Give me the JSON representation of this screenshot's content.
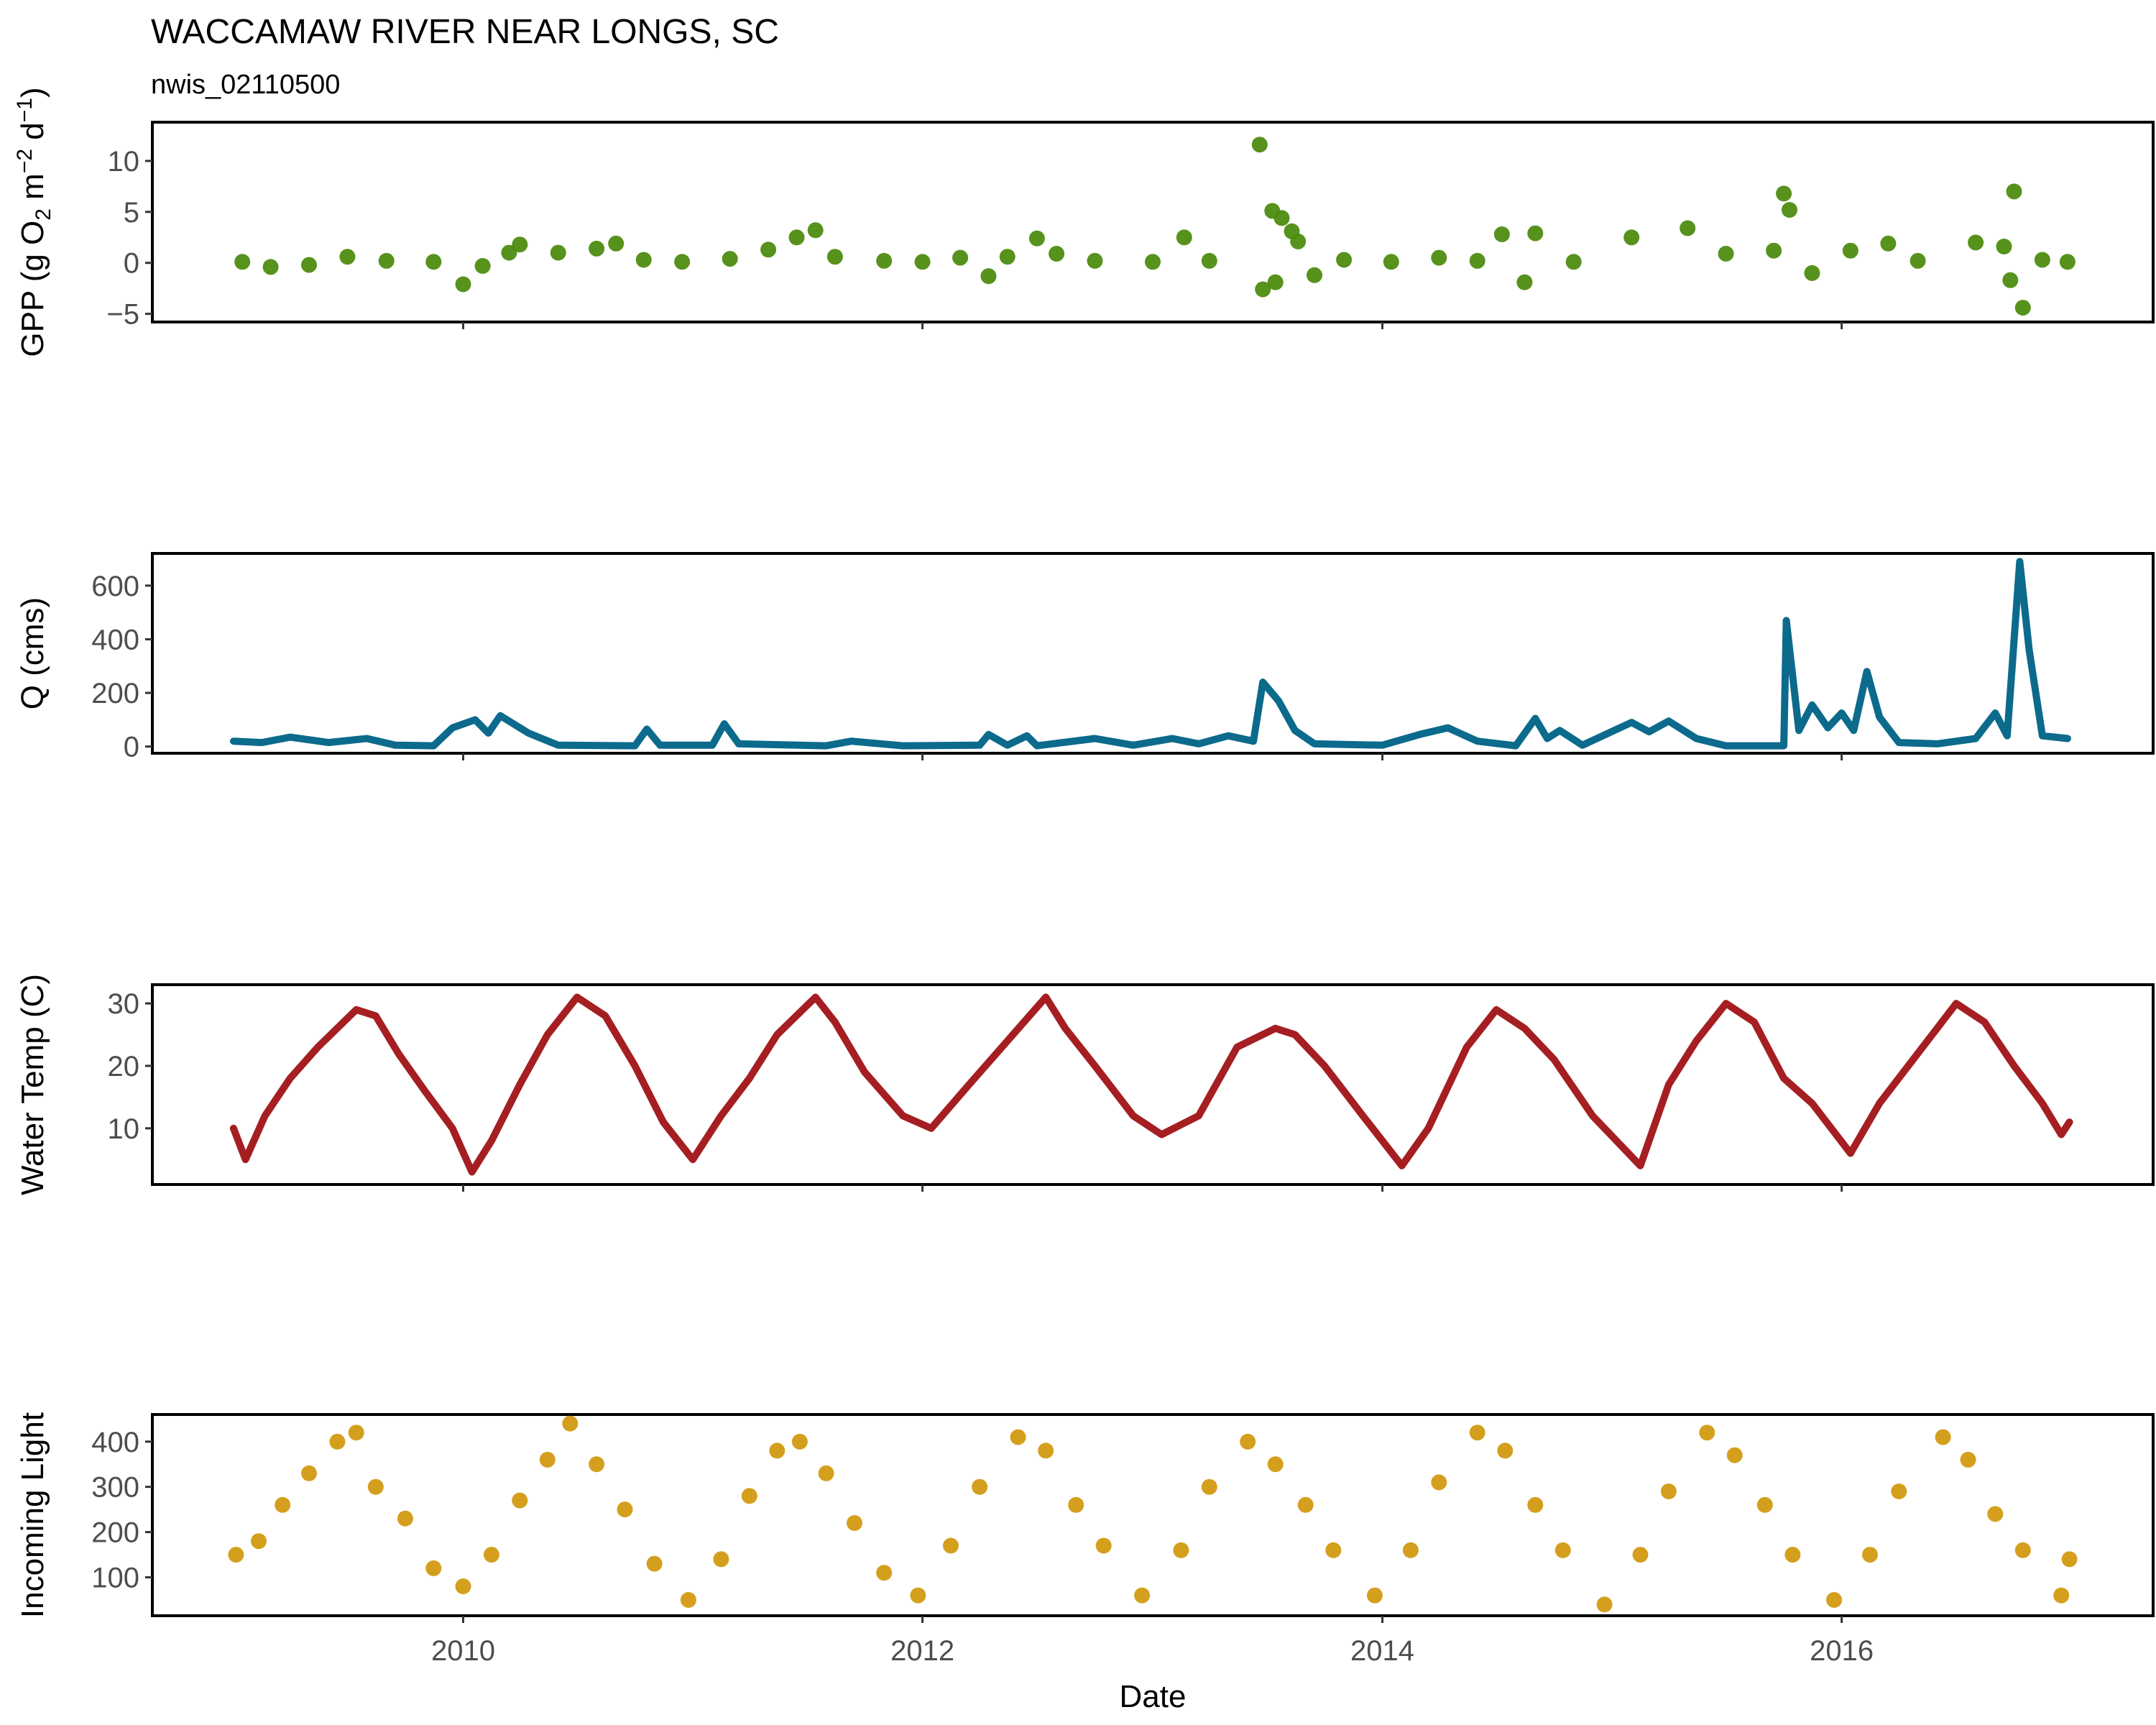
{
  "chart_data": {
    "title": "WACCAMAW RIVER NEAR LONGS, SC",
    "subtitle": "nwis_02110500",
    "xlabel": "Date",
    "type": "multi-panel",
    "x_axis": {
      "type": "date",
      "range": [
        "2008-08-25",
        "2017-05-10"
      ],
      "tick_labels": [
        "2010",
        "2012",
        "2014",
        "2016"
      ]
    },
    "x_ticks": [
      "2010-01-01",
      "2012-01-01",
      "2014-01-01",
      "2016-01-01"
    ],
    "panels": [
      {
        "id": "gpp",
        "type": "scatter",
        "ylabel": {
          "text": "GPP (g  O",
          "sub": "2",
          "mid": " m",
          "sup1": "−2",
          "mid2": " d",
          "sup2": "−1",
          "end": ")"
        },
        "ylim": [
          -5.8,
          13.8
        ],
        "yticks": [
          -5,
          0,
          5,
          10
        ],
        "color": "#4d8c10",
        "points": [
          [
            "2009-01-15",
            0.1
          ],
          [
            "2009-03-01",
            -0.4
          ],
          [
            "2009-05-01",
            -0.2
          ],
          [
            "2009-07-01",
            0.6
          ],
          [
            "2009-09-01",
            0.2
          ],
          [
            "2009-11-15",
            0.1
          ],
          [
            "2010-01-01",
            -2.1
          ],
          [
            "2010-02-01",
            -0.3
          ],
          [
            "2010-03-15",
            1.0
          ],
          [
            "2010-04-01",
            1.8
          ],
          [
            "2010-06-01",
            1.0
          ],
          [
            "2010-08-01",
            1.4
          ],
          [
            "2010-09-01",
            1.9
          ],
          [
            "2010-10-15",
            0.3
          ],
          [
            "2010-12-15",
            0.1
          ],
          [
            "2011-03-01",
            0.4
          ],
          [
            "2011-05-01",
            1.3
          ],
          [
            "2011-06-15",
            2.5
          ],
          [
            "2011-07-15",
            3.2
          ],
          [
            "2011-08-15",
            0.6
          ],
          [
            "2011-11-01",
            0.2
          ],
          [
            "2012-01-01",
            0.1
          ],
          [
            "2012-03-01",
            0.5
          ],
          [
            "2012-04-15",
            -1.3
          ],
          [
            "2012-05-15",
            0.6
          ],
          [
            "2012-07-01",
            2.4
          ],
          [
            "2012-08-01",
            0.9
          ],
          [
            "2012-10-01",
            0.2
          ],
          [
            "2013-01-01",
            0.1
          ],
          [
            "2013-02-20",
            2.5
          ],
          [
            "2013-04-01",
            0.2
          ],
          [
            "2013-06-20",
            11.6
          ],
          [
            "2013-07-10",
            5.1
          ],
          [
            "2013-07-25",
            4.4
          ],
          [
            "2013-08-10",
            3.1
          ],
          [
            "2013-08-20",
            2.1
          ],
          [
            "2013-06-25",
            -2.6
          ],
          [
            "2013-07-15",
            -1.9
          ],
          [
            "2013-09-15",
            -1.2
          ],
          [
            "2013-11-01",
            0.3
          ],
          [
            "2014-01-15",
            0.1
          ],
          [
            "2014-04-01",
            0.5
          ],
          [
            "2014-06-01",
            0.2
          ],
          [
            "2014-07-10",
            2.8
          ],
          [
            "2014-08-15",
            -1.9
          ],
          [
            "2014-09-01",
            2.9
          ],
          [
            "2014-11-01",
            0.1
          ],
          [
            "2015-02-01",
            2.5
          ],
          [
            "2015-05-01",
            3.4
          ],
          [
            "2015-07-01",
            0.9
          ],
          [
            "2015-09-15",
            1.2
          ],
          [
            "2015-10-01",
            6.8
          ],
          [
            "2015-10-10",
            5.2
          ],
          [
            "2015-11-15",
            -1.0
          ],
          [
            "2016-01-15",
            1.2
          ],
          [
            "2016-03-15",
            1.9
          ],
          [
            "2016-05-01",
            0.2
          ],
          [
            "2016-08-01",
            2.0
          ],
          [
            "2016-09-15",
            1.6
          ],
          [
            "2016-10-01",
            7.0
          ],
          [
            "2016-10-15",
            -4.4
          ],
          [
            "2016-09-25",
            -1.7
          ],
          [
            "2016-11-15",
            0.3
          ],
          [
            "2016-12-25",
            0.1
          ]
        ]
      },
      {
        "id": "q",
        "type": "line",
        "ylabel": {
          "text": "Q (cms)"
        },
        "ylim": [
          -25,
          720
        ],
        "yticks": [
          0,
          200,
          400,
          600
        ],
        "color": "#0c6a8c",
        "points": [
          [
            "2009-01-01",
            20
          ],
          [
            "2009-02-15",
            15
          ],
          [
            "2009-04-01",
            35
          ],
          [
            "2009-06-01",
            15
          ],
          [
            "2009-08-01",
            30
          ],
          [
            "2009-09-15",
            5
          ],
          [
            "2009-11-15",
            3
          ],
          [
            "2009-12-15",
            70
          ],
          [
            "2010-01-20",
            100
          ],
          [
            "2010-02-10",
            50
          ],
          [
            "2010-03-01",
            115
          ],
          [
            "2010-04-15",
            50
          ],
          [
            "2010-06-01",
            5
          ],
          [
            "2010-10-01",
            3
          ],
          [
            "2010-10-20",
            65
          ],
          [
            "2010-11-10",
            5
          ],
          [
            "2011-02-01",
            5
          ],
          [
            "2011-02-20",
            85
          ],
          [
            "2011-03-15",
            10
          ],
          [
            "2011-08-01",
            3
          ],
          [
            "2011-09-10",
            20
          ],
          [
            "2011-12-01",
            3
          ],
          [
            "2012-04-01",
            5
          ],
          [
            "2012-04-15",
            45
          ],
          [
            "2012-05-15",
            5
          ],
          [
            "2012-06-15",
            40
          ],
          [
            "2012-07-01",
            3
          ],
          [
            "2012-10-01",
            30
          ],
          [
            "2012-12-01",
            5
          ],
          [
            "2013-02-01",
            30
          ],
          [
            "2013-03-15",
            10
          ],
          [
            "2013-05-01",
            40
          ],
          [
            "2013-06-10",
            20
          ],
          [
            "2013-06-25",
            240
          ],
          [
            "2013-07-20",
            170
          ],
          [
            "2013-08-15",
            60
          ],
          [
            "2013-09-15",
            10
          ],
          [
            "2014-01-01",
            5
          ],
          [
            "2014-03-01",
            45
          ],
          [
            "2014-04-15",
            70
          ],
          [
            "2014-06-01",
            20
          ],
          [
            "2014-08-01",
            3
          ],
          [
            "2014-09-01",
            105
          ],
          [
            "2014-09-20",
            30
          ],
          [
            "2014-10-10",
            60
          ],
          [
            "2014-11-15",
            5
          ],
          [
            "2015-02-01",
            90
          ],
          [
            "2015-03-01",
            55
          ],
          [
            "2015-04-01",
            95
          ],
          [
            "2015-05-15",
            30
          ],
          [
            "2015-07-01",
            3
          ],
          [
            "2015-10-01",
            3
          ],
          [
            "2015-10-05",
            470
          ],
          [
            "2015-10-25",
            60
          ],
          [
            "2015-11-15",
            155
          ],
          [
            "2015-12-10",
            70
          ],
          [
            "2016-01-01",
            125
          ],
          [
            "2016-01-20",
            60
          ],
          [
            "2016-02-10",
            280
          ],
          [
            "2016-03-01",
            110
          ],
          [
            "2016-04-01",
            15
          ],
          [
            "2016-06-01",
            10
          ],
          [
            "2016-08-01",
            30
          ],
          [
            "2016-09-01",
            125
          ],
          [
            "2016-09-20",
            40
          ],
          [
            "2016-10-10",
            690
          ],
          [
            "2016-10-25",
            360
          ],
          [
            "2016-11-15",
            40
          ],
          [
            "2016-12-25",
            30
          ]
        ]
      },
      {
        "id": "temp",
        "type": "line",
        "ylabel": {
          "text": "Water Temp (C)"
        },
        "ylim": [
          1,
          33
        ],
        "yticks": [
          10,
          20,
          30
        ],
        "color": "#a51e22",
        "points": [
          [
            "2009-01-01",
            10
          ],
          [
            "2009-01-20",
            5
          ],
          [
            "2009-02-20",
            12
          ],
          [
            "2009-04-01",
            18
          ],
          [
            "2009-05-15",
            23
          ],
          [
            "2009-07-15",
            29
          ],
          [
            "2009-08-15",
            28
          ],
          [
            "2009-09-20",
            22
          ],
          [
            "2009-11-01",
            16
          ],
          [
            "2009-12-15",
            10
          ],
          [
            "2010-01-15",
            3
          ],
          [
            "2010-02-15",
            8
          ],
          [
            "2010-04-01",
            17
          ],
          [
            "2010-05-15",
            25
          ],
          [
            "2010-07-01",
            31
          ],
          [
            "2010-08-15",
            28
          ],
          [
            "2010-10-01",
            20
          ],
          [
            "2010-11-15",
            11
          ],
          [
            "2011-01-01",
            5
          ],
          [
            "2011-02-15",
            12
          ],
          [
            "2011-04-01",
            18
          ],
          [
            "2011-05-15",
            25
          ],
          [
            "2011-07-15",
            31
          ],
          [
            "2011-08-15",
            27
          ],
          [
            "2011-10-01",
            19
          ],
          [
            "2011-12-01",
            12
          ],
          [
            "2012-01-15",
            10
          ],
          [
            "2012-03-15",
            17
          ],
          [
            "2012-05-15",
            24
          ],
          [
            "2012-07-15",
            31
          ],
          [
            "2012-08-15",
            26
          ],
          [
            "2012-10-01",
            20
          ],
          [
            "2012-12-01",
            12
          ],
          [
            "2013-01-15",
            9
          ],
          [
            "2013-03-15",
            12
          ],
          [
            "2013-05-15",
            23
          ],
          [
            "2013-07-15",
            26
          ],
          [
            "2013-08-15",
            25
          ],
          [
            "2013-10-01",
            20
          ],
          [
            "2013-12-01",
            12
          ],
          [
            "2014-02-01",
            4
          ],
          [
            "2014-03-15",
            10
          ],
          [
            "2014-05-15",
            23
          ],
          [
            "2014-07-01",
            29
          ],
          [
            "2014-08-15",
            26
          ],
          [
            "2014-10-01",
            21
          ],
          [
            "2014-12-01",
            12
          ],
          [
            "2015-02-15",
            4
          ],
          [
            "2015-04-01",
            17
          ],
          [
            "2015-05-15",
            24
          ],
          [
            "2015-07-01",
            30
          ],
          [
            "2015-08-15",
            27
          ],
          [
            "2015-10-01",
            18
          ],
          [
            "2015-11-15",
            14
          ],
          [
            "2016-01-15",
            6
          ],
          [
            "2016-03-01",
            14
          ],
          [
            "2016-05-01",
            22
          ],
          [
            "2016-07-01",
            30
          ],
          [
            "2016-08-15",
            27
          ],
          [
            "2016-10-01",
            20
          ],
          [
            "2016-11-15",
            14
          ],
          [
            "2016-12-15",
            9
          ],
          [
            "2016-12-28",
            11
          ]
        ]
      },
      {
        "id": "light",
        "type": "scatter",
        "ylabel": {
          "text": "Incoming Light"
        },
        "ylim": [
          15,
          460
        ],
        "yticks": [
          100,
          200,
          300,
          400
        ],
        "color": "#d39a12",
        "points": [
          [
            "2009-01-05",
            150
          ],
          [
            "2009-02-10",
            180
          ],
          [
            "2009-03-20",
            260
          ],
          [
            "2009-05-01",
            330
          ],
          [
            "2009-06-15",
            400
          ],
          [
            "2009-07-15",
            420
          ],
          [
            "2009-08-15",
            300
          ],
          [
            "2009-10-01",
            230
          ],
          [
            "2009-11-15",
            120
          ],
          [
            "2010-01-01",
            80
          ],
          [
            "2010-02-15",
            150
          ],
          [
            "2010-04-01",
            270
          ],
          [
            "2010-05-15",
            360
          ],
          [
            "2010-06-20",
            440
          ],
          [
            "2010-08-01",
            350
          ],
          [
            "2010-09-15",
            250
          ],
          [
            "2010-11-01",
            130
          ],
          [
            "2010-12-25",
            50
          ],
          [
            "2011-02-15",
            140
          ],
          [
            "2011-04-01",
            280
          ],
          [
            "2011-05-15",
            380
          ],
          [
            "2011-06-20",
            400
          ],
          [
            "2011-08-01",
            330
          ],
          [
            "2011-09-15",
            220
          ],
          [
            "2011-11-01",
            110
          ],
          [
            "2011-12-25",
            60
          ],
          [
            "2012-02-15",
            170
          ],
          [
            "2012-04-01",
            300
          ],
          [
            "2012-06-01",
            410
          ],
          [
            "2012-07-15",
            380
          ],
          [
            "2012-09-01",
            260
          ],
          [
            "2012-10-15",
            170
          ],
          [
            "2012-12-15",
            60
          ],
          [
            "2013-02-15",
            160
          ],
          [
            "2013-04-01",
            300
          ],
          [
            "2013-06-01",
            400
          ],
          [
            "2013-07-15",
            350
          ],
          [
            "2013-09-01",
            260
          ],
          [
            "2013-10-15",
            160
          ],
          [
            "2013-12-20",
            60
          ],
          [
            "2014-02-15",
            160
          ],
          [
            "2014-04-01",
            310
          ],
          [
            "2014-06-01",
            420
          ],
          [
            "2014-07-15",
            380
          ],
          [
            "2014-09-01",
            260
          ],
          [
            "2014-10-15",
            160
          ],
          [
            "2014-12-20",
            40
          ],
          [
            "2015-02-15",
            150
          ],
          [
            "2015-04-01",
            290
          ],
          [
            "2015-06-01",
            420
          ],
          [
            "2015-07-15",
            370
          ],
          [
            "2015-09-01",
            260
          ],
          [
            "2015-10-15",
            150
          ],
          [
            "2015-12-20",
            50
          ],
          [
            "2016-02-15",
            150
          ],
          [
            "2016-04-01",
            290
          ],
          [
            "2016-06-10",
            410
          ],
          [
            "2016-07-20",
            360
          ],
          [
            "2016-09-01",
            240
          ],
          [
            "2016-10-15",
            160
          ],
          [
            "2016-12-15",
            60
          ],
          [
            "2016-12-28",
            140
          ]
        ]
      }
    ]
  }
}
